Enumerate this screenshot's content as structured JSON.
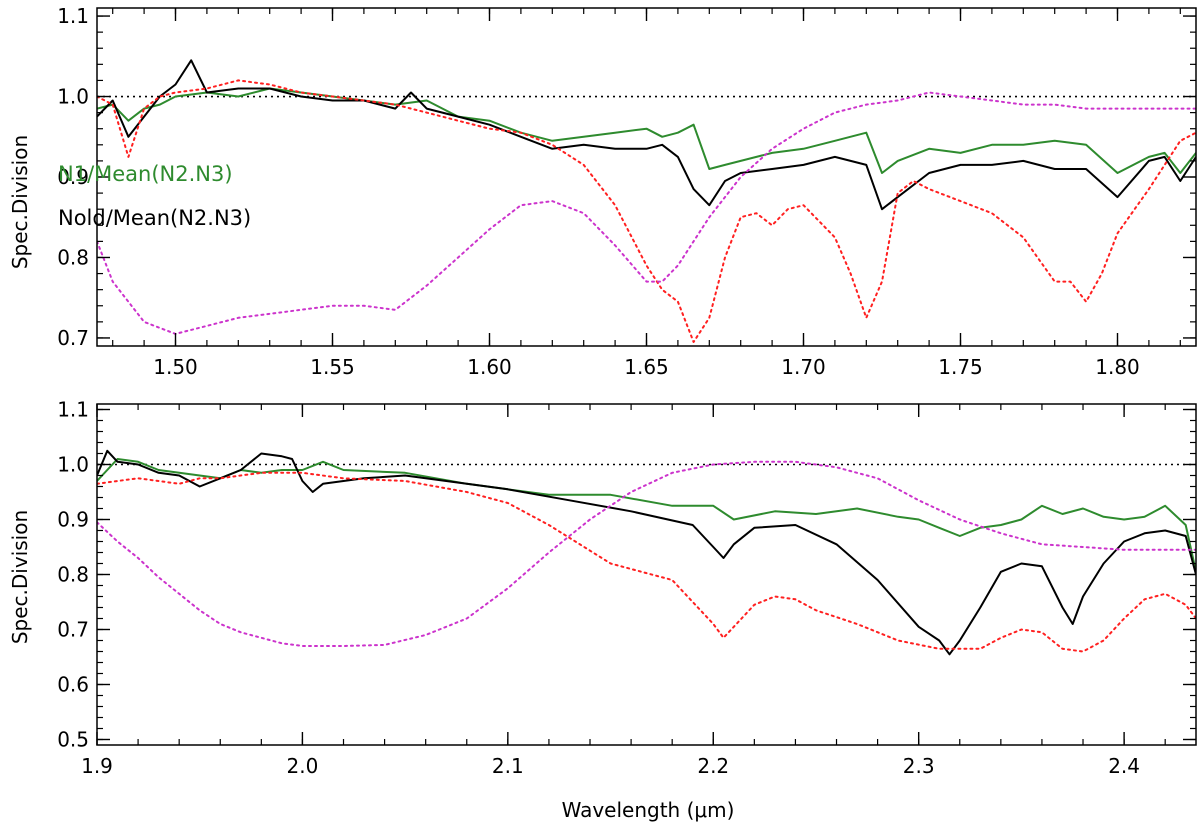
{
  "chart_data": [
    {
      "type": "line",
      "xlim": [
        1.475,
        1.825
      ],
      "ylim": [
        0.69,
        1.11
      ],
      "xticks": [
        {
          "v": 1.5,
          "label": "1.50"
        },
        {
          "v": 1.55,
          "label": "1.55"
        },
        {
          "v": 1.6,
          "label": "1.60"
        },
        {
          "v": 1.65,
          "label": "1.65"
        },
        {
          "v": 1.7,
          "label": "1.70"
        },
        {
          "v": 1.75,
          "label": "1.75"
        },
        {
          "v": 1.8,
          "label": "1.80"
        }
      ],
      "yticks": [
        {
          "v": 0.7,
          "label": "0.7"
        },
        {
          "v": 0.8,
          "label": "0.8"
        },
        {
          "v": 0.9,
          "label": "0.9"
        },
        {
          "v": 1.0,
          "label": "1.0"
        },
        {
          "v": 1.1,
          "label": "1.1"
        }
      ],
      "xminor_step": 0.01,
      "yminor_step": 0.02,
      "xlabel": "",
      "ylabel": "Spec.Division",
      "reference_line": 1.0,
      "legend": [
        {
          "text": "N1/Mean(N2.N3)",
          "color": "#2e8b2e"
        },
        {
          "text": "Nold/Mean(N2.N3)",
          "color": "#000000"
        }
      ],
      "series": [
        {
          "color": "#2e8b2e",
          "style": "solid",
          "x": [
            1.475,
            1.48,
            1.485,
            1.49,
            1.495,
            1.5,
            1.51,
            1.52,
            1.53,
            1.54,
            1.55,
            1.56,
            1.57,
            1.58,
            1.59,
            1.6,
            1.61,
            1.62,
            1.63,
            1.64,
            1.65,
            1.655,
            1.66,
            1.665,
            1.67,
            1.675,
            1.68,
            1.69,
            1.7,
            1.71,
            1.72,
            1.725,
            1.73,
            1.74,
            1.75,
            1.76,
            1.77,
            1.78,
            1.79,
            1.8,
            1.81,
            1.815,
            1.82,
            1.825
          ],
          "y": [
            0.985,
            0.99,
            0.97,
            0.985,
            0.99,
            1.0,
            1.005,
            1.0,
            1.01,
            1.005,
            1.0,
            0.995,
            0.99,
            0.995,
            0.975,
            0.97,
            0.955,
            0.945,
            0.95,
            0.955,
            0.96,
            0.95,
            0.955,
            0.965,
            0.91,
            0.915,
            0.92,
            0.93,
            0.935,
            0.945,
            0.955,
            0.905,
            0.92,
            0.935,
            0.93,
            0.94,
            0.94,
            0.945,
            0.94,
            0.905,
            0.925,
            0.93,
            0.905,
            0.93
          ]
        },
        {
          "color": "#000000",
          "style": "solid",
          "x": [
            1.475,
            1.48,
            1.485,
            1.49,
            1.495,
            1.5,
            1.505,
            1.51,
            1.52,
            1.53,
            1.54,
            1.55,
            1.56,
            1.57,
            1.575,
            1.58,
            1.59,
            1.6,
            1.61,
            1.62,
            1.63,
            1.64,
            1.65,
            1.655,
            1.66,
            1.665,
            1.67,
            1.675,
            1.68,
            1.69,
            1.7,
            1.71,
            1.72,
            1.725,
            1.73,
            1.74,
            1.75,
            1.76,
            1.77,
            1.78,
            1.79,
            1.8,
            1.81,
            1.815,
            1.82,
            1.825
          ],
          "y": [
            0.975,
            0.995,
            0.95,
            0.975,
            1.0,
            1.015,
            1.045,
            1.005,
            1.01,
            1.01,
            1.0,
            0.995,
            0.995,
            0.985,
            1.005,
            0.985,
            0.975,
            0.965,
            0.95,
            0.935,
            0.94,
            0.935,
            0.935,
            0.94,
            0.925,
            0.885,
            0.865,
            0.895,
            0.905,
            0.91,
            0.915,
            0.925,
            0.915,
            0.86,
            0.875,
            0.905,
            0.915,
            0.915,
            0.92,
            0.91,
            0.91,
            0.875,
            0.92,
            0.925,
            0.895,
            0.925
          ]
        },
        {
          "color": "#ff2020",
          "style": "dotted",
          "x": [
            1.475,
            1.48,
            1.485,
            1.49,
            1.495,
            1.5,
            1.51,
            1.52,
            1.53,
            1.54,
            1.55,
            1.56,
            1.57,
            1.58,
            1.59,
            1.6,
            1.61,
            1.62,
            1.63,
            1.64,
            1.65,
            1.655,
            1.66,
            1.665,
            1.67,
            1.675,
            1.68,
            1.685,
            1.69,
            1.695,
            1.7,
            1.71,
            1.715,
            1.72,
            1.725,
            1.73,
            1.735,
            1.74,
            1.75,
            1.76,
            1.77,
            1.78,
            1.785,
            1.79,
            1.795,
            1.8,
            1.81,
            1.82,
            1.825
          ],
          "y": [
            1.0,
            0.99,
            0.925,
            0.985,
            1.0,
            1.005,
            1.01,
            1.02,
            1.015,
            1.005,
            1.0,
            0.995,
            0.99,
            0.98,
            0.97,
            0.96,
            0.955,
            0.94,
            0.915,
            0.865,
            0.79,
            0.76,
            0.745,
            0.695,
            0.725,
            0.8,
            0.85,
            0.855,
            0.84,
            0.86,
            0.865,
            0.825,
            0.78,
            0.725,
            0.77,
            0.88,
            0.895,
            0.885,
            0.87,
            0.855,
            0.825,
            0.77,
            0.77,
            0.745,
            0.78,
            0.83,
            0.885,
            0.945,
            0.955
          ]
        },
        {
          "color": "#cc33cc",
          "style": "dotted",
          "x": [
            1.475,
            1.48,
            1.49,
            1.5,
            1.51,
            1.52,
            1.53,
            1.54,
            1.55,
            1.56,
            1.57,
            1.58,
            1.59,
            1.6,
            1.61,
            1.62,
            1.63,
            1.64,
            1.65,
            1.655,
            1.66,
            1.67,
            1.68,
            1.69,
            1.7,
            1.71,
            1.72,
            1.73,
            1.74,
            1.75,
            1.76,
            1.77,
            1.78,
            1.79,
            1.8,
            1.81,
            1.82,
            1.825
          ],
          "y": [
            0.82,
            0.77,
            0.72,
            0.705,
            0.715,
            0.725,
            0.73,
            0.735,
            0.74,
            0.74,
            0.735,
            0.765,
            0.8,
            0.835,
            0.865,
            0.87,
            0.855,
            0.815,
            0.77,
            0.77,
            0.79,
            0.85,
            0.9,
            0.935,
            0.96,
            0.98,
            0.99,
            0.995,
            1.005,
            1.0,
            0.995,
            0.99,
            0.99,
            0.985,
            0.985,
            0.985,
            0.985,
            0.985
          ]
        }
      ]
    },
    {
      "type": "line",
      "xlim": [
        1.9,
        2.435
      ],
      "ylim": [
        0.49,
        1.11
      ],
      "xticks": [
        {
          "v": 1.9,
          "label": "1.9"
        },
        {
          "v": 2.0,
          "label": "2.0"
        },
        {
          "v": 2.1,
          "label": "2.1"
        },
        {
          "v": 2.2,
          "label": "2.2"
        },
        {
          "v": 2.3,
          "label": "2.3"
        },
        {
          "v": 2.4,
          "label": "2.4"
        }
      ],
      "yticks": [
        {
          "v": 0.5,
          "label": "0.5"
        },
        {
          "v": 0.6,
          "label": "0.6"
        },
        {
          "v": 0.7,
          "label": "0.7"
        },
        {
          "v": 0.8,
          "label": "0.8"
        },
        {
          "v": 0.9,
          "label": "0.9"
        },
        {
          "v": 1.0,
          "label": "1.0"
        },
        {
          "v": 1.1,
          "label": "1.1"
        }
      ],
      "xminor_step": 0.02,
      "yminor_step": 0.02,
      "xlabel": "Wavelength (μm)",
      "ylabel": "Spec.Division",
      "reference_line": 1.0,
      "series": [
        {
          "color": "#2e8b2e",
          "style": "solid",
          "x": [
            1.9,
            1.91,
            1.92,
            1.93,
            1.94,
            1.95,
            1.96,
            1.97,
            1.98,
            1.99,
            2.0,
            2.01,
            2.02,
            2.05,
            2.08,
            2.1,
            2.12,
            2.15,
            2.18,
            2.2,
            2.21,
            2.23,
            2.25,
            2.27,
            2.29,
            2.3,
            2.31,
            2.32,
            2.33,
            2.34,
            2.35,
            2.36,
            2.37,
            2.38,
            2.39,
            2.4,
            2.41,
            2.42,
            2.43,
            2.435
          ],
          "y": [
            0.97,
            1.01,
            1.005,
            0.99,
            0.985,
            0.98,
            0.975,
            0.99,
            0.985,
            0.99,
            0.99,
            1.005,
            0.99,
            0.985,
            0.965,
            0.955,
            0.945,
            0.945,
            0.925,
            0.925,
            0.9,
            0.915,
            0.91,
            0.92,
            0.905,
            0.9,
            0.885,
            0.87,
            0.885,
            0.89,
            0.9,
            0.925,
            0.91,
            0.92,
            0.905,
            0.9,
            0.905,
            0.925,
            0.89,
            0.805
          ]
        },
        {
          "color": "#000000",
          "style": "solid",
          "x": [
            1.9,
            1.905,
            1.91,
            1.92,
            1.93,
            1.94,
            1.95,
            1.96,
            1.97,
            1.98,
            1.99,
            1.995,
            2.0,
            2.005,
            2.01,
            2.03,
            2.05,
            2.08,
            2.1,
            2.13,
            2.16,
            2.19,
            2.2,
            2.205,
            2.21,
            2.22,
            2.24,
            2.26,
            2.28,
            2.3,
            2.31,
            2.315,
            2.32,
            2.33,
            2.34,
            2.35,
            2.36,
            2.37,
            2.375,
            2.38,
            2.39,
            2.4,
            2.41,
            2.42,
            2.43,
            2.435
          ],
          "y": [
            0.98,
            1.025,
            1.005,
            1.0,
            0.985,
            0.98,
            0.96,
            0.975,
            0.99,
            1.02,
            1.015,
            1.01,
            0.97,
            0.95,
            0.965,
            0.975,
            0.98,
            0.965,
            0.955,
            0.935,
            0.915,
            0.89,
            0.85,
            0.83,
            0.855,
            0.885,
            0.89,
            0.855,
            0.79,
            0.705,
            0.68,
            0.655,
            0.68,
            0.74,
            0.805,
            0.82,
            0.815,
            0.74,
            0.71,
            0.76,
            0.82,
            0.86,
            0.875,
            0.88,
            0.87,
            0.8
          ]
        },
        {
          "color": "#ff2020",
          "style": "dotted",
          "x": [
            1.9,
            1.91,
            1.92,
            1.93,
            1.94,
            1.95,
            1.96,
            1.97,
            1.98,
            2.0,
            2.02,
            2.05,
            2.08,
            2.1,
            2.12,
            2.15,
            2.18,
            2.2,
            2.205,
            2.21,
            2.22,
            2.23,
            2.24,
            2.25,
            2.27,
            2.29,
            2.31,
            2.33,
            2.34,
            2.35,
            2.36,
            2.37,
            2.38,
            2.39,
            2.4,
            2.41,
            2.42,
            2.43,
            2.435
          ],
          "y": [
            0.965,
            0.97,
            0.975,
            0.97,
            0.965,
            0.975,
            0.975,
            0.98,
            0.985,
            0.985,
            0.975,
            0.97,
            0.95,
            0.93,
            0.89,
            0.82,
            0.79,
            0.71,
            0.685,
            0.705,
            0.745,
            0.76,
            0.755,
            0.735,
            0.71,
            0.68,
            0.665,
            0.665,
            0.685,
            0.7,
            0.695,
            0.665,
            0.66,
            0.68,
            0.72,
            0.755,
            0.765,
            0.745,
            0.72
          ]
        },
        {
          "color": "#cc33cc",
          "style": "dotted",
          "x": [
            1.9,
            1.91,
            1.92,
            1.93,
            1.94,
            1.95,
            1.96,
            1.97,
            1.98,
            1.99,
            2.0,
            2.02,
            2.04,
            2.06,
            2.08,
            2.1,
            2.12,
            2.14,
            2.16,
            2.18,
            2.2,
            2.22,
            2.24,
            2.26,
            2.28,
            2.3,
            2.32,
            2.34,
            2.36,
            2.38,
            2.4,
            2.42,
            2.435
          ],
          "y": [
            0.895,
            0.86,
            0.83,
            0.795,
            0.765,
            0.735,
            0.71,
            0.695,
            0.685,
            0.675,
            0.67,
            0.67,
            0.672,
            0.69,
            0.72,
            0.775,
            0.84,
            0.9,
            0.95,
            0.985,
            1.0,
            1.005,
            1.005,
            0.995,
            0.975,
            0.935,
            0.9,
            0.875,
            0.855,
            0.85,
            0.845,
            0.845,
            0.845
          ]
        }
      ]
    }
  ]
}
